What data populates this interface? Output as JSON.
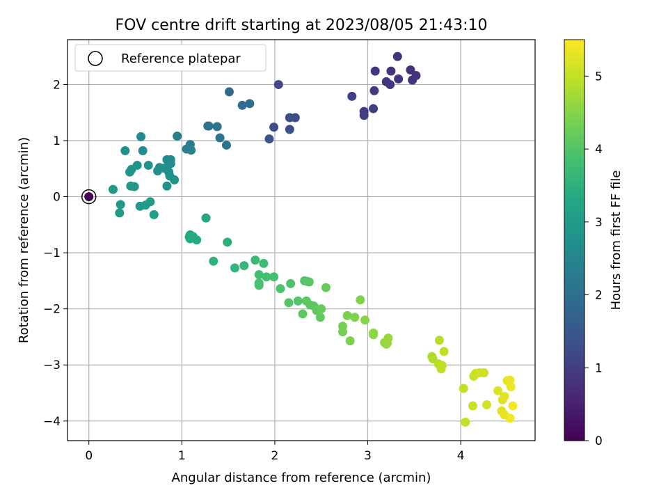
{
  "chart_data": {
    "type": "scatter",
    "title": "FOV centre drift starting at 2023/08/05 21:43:10",
    "xlabel": "Angular distance from reference (arcmin)",
    "ylabel": "Rotation from reference (arcmin)",
    "xlim": [
      -0.23,
      4.8
    ],
    "ylim": [
      -4.35,
      2.8
    ],
    "xticks": [
      "0",
      "1",
      "2",
      "3",
      "4"
    ],
    "yticks": [
      "−4",
      "−3",
      "−2",
      "−1",
      "0",
      "1",
      "2"
    ],
    "grid": true,
    "legend": {
      "label": "Reference platepar",
      "placement": "top-left"
    },
    "colorbar": {
      "label": "Hours from first FF file",
      "colormap": "viridis",
      "range": [
        0,
        5.5
      ],
      "ticks": [
        "0",
        "1",
        "2",
        "3",
        "4",
        "5"
      ]
    },
    "reference_point": {
      "x": 0,
      "y": 0
    },
    "points": [
      {
        "x": 0,
        "y": 0,
        "h": 0
      },
      {
        "x": 3.32,
        "y": 2.5,
        "h": 0.75
      },
      {
        "x": 3.46,
        "y": 2.26,
        "h": 0.75
      },
      {
        "x": 3.52,
        "y": 2.16,
        "h": 0.8
      },
      {
        "x": 3.48,
        "y": 2.08,
        "h": 0.8
      },
      {
        "x": 3.25,
        "y": 2.24,
        "h": 0.8
      },
      {
        "x": 3.33,
        "y": 2.1,
        "h": 0.8
      },
      {
        "x": 3.2,
        "y": 2.05,
        "h": 0.85
      },
      {
        "x": 3.24,
        "y": 2.0,
        "h": 0.85
      },
      {
        "x": 3.08,
        "y": 2.24,
        "h": 0.85
      },
      {
        "x": 3.07,
        "y": 1.89,
        "h": 0.9
      },
      {
        "x": 2.96,
        "y": 1.52,
        "h": 1.0
      },
      {
        "x": 2.96,
        "y": 1.45,
        "h": 1.0
      },
      {
        "x": 3.06,
        "y": 1.57,
        "h": 1.0
      },
      {
        "x": 2.83,
        "y": 1.79,
        "h": 1.05
      },
      {
        "x": 2.04,
        "y": 2.0,
        "h": 1.2
      },
      {
        "x": 2.22,
        "y": 1.41,
        "h": 1.25
      },
      {
        "x": 2.16,
        "y": 1.41,
        "h": 1.3
      },
      {
        "x": 2.16,
        "y": 1.2,
        "h": 1.3
      },
      {
        "x": 1.99,
        "y": 1.24,
        "h": 1.35
      },
      {
        "x": 1.94,
        "y": 1.03,
        "h": 1.4
      },
      {
        "x": 1.51,
        "y": 1.87,
        "h": 1.9
      },
      {
        "x": 1.65,
        "y": 1.63,
        "h": 1.95
      },
      {
        "x": 1.73,
        "y": 1.66,
        "h": 1.95
      },
      {
        "x": 1.48,
        "y": 0.92,
        "h": 2.1
      },
      {
        "x": 1.29,
        "y": 1.26,
        "h": 2.05
      },
      {
        "x": 1.28,
        "y": 1.26,
        "h": 2.05
      },
      {
        "x": 1.38,
        "y": 1.25,
        "h": 2.1
      },
      {
        "x": 1.41,
        "y": 1.05,
        "h": 2.15
      },
      {
        "x": 0.95,
        "y": 1.08,
        "h": 2.3
      },
      {
        "x": 1.09,
        "y": 0.93,
        "h": 2.3
      },
      {
        "x": 1.05,
        "y": 0.85,
        "h": 2.35
      },
      {
        "x": 1.1,
        "y": 0.83,
        "h": 2.35
      },
      {
        "x": 0.56,
        "y": 1.07,
        "h": 2.6
      },
      {
        "x": 0.39,
        "y": 0.82,
        "h": 2.7
      },
      {
        "x": 0.58,
        "y": 0.82,
        "h": 2.65
      },
      {
        "x": 0.88,
        "y": 0.66,
        "h": 2.6
      },
      {
        "x": 0.84,
        "y": 0.66,
        "h": 2.6
      },
      {
        "x": 0.88,
        "y": 0.59,
        "h": 2.65
      },
      {
        "x": 0.81,
        "y": 0.51,
        "h": 2.7
      },
      {
        "x": 0.86,
        "y": 0.44,
        "h": 2.7
      },
      {
        "x": 0.87,
        "y": 0.37,
        "h": 2.75
      },
      {
        "x": 0.92,
        "y": 0.3,
        "h": 2.75
      },
      {
        "x": 0.84,
        "y": 0.19,
        "h": 2.8
      },
      {
        "x": 0.74,
        "y": 0.46,
        "h": 2.75
      },
      {
        "x": 0.76,
        "y": 0.52,
        "h": 2.75
      },
      {
        "x": 0.64,
        "y": 0.56,
        "h": 2.8
      },
      {
        "x": 0.52,
        "y": 0.56,
        "h": 2.8
      },
      {
        "x": 0.46,
        "y": 0.49,
        "h": 2.85
      },
      {
        "x": 0.44,
        "y": 0.44,
        "h": 2.85
      },
      {
        "x": 0.45,
        "y": 0.19,
        "h": 2.9
      },
      {
        "x": 0.49,
        "y": 0.18,
        "h": 2.9
      },
      {
        "x": 0.26,
        "y": 0.13,
        "h": 2.95
      },
      {
        "x": 0.34,
        "y": -0.14,
        "h": 2.95
      },
      {
        "x": 0.33,
        "y": -0.29,
        "h": 3.0
      },
      {
        "x": 0.55,
        "y": -0.17,
        "h": 3.0
      },
      {
        "x": 0.61,
        "y": -0.15,
        "h": 3.0
      },
      {
        "x": 0.66,
        "y": -0.09,
        "h": 3.0
      },
      {
        "x": 0.7,
        "y": -0.32,
        "h": 3.05
      },
      {
        "x": 1.26,
        "y": -0.38,
        "h": 3.2
      },
      {
        "x": 1.09,
        "y": -0.68,
        "h": 3.3
      },
      {
        "x": 1.12,
        "y": -0.71,
        "h": 3.3
      },
      {
        "x": 1.08,
        "y": -0.72,
        "h": 3.3
      },
      {
        "x": 1.09,
        "y": -0.75,
        "h": 3.35
      },
      {
        "x": 1.16,
        "y": -0.77,
        "h": 3.35
      },
      {
        "x": 1.49,
        "y": -0.81,
        "h": 3.5
      },
      {
        "x": 1.34,
        "y": -1.15,
        "h": 3.55
      },
      {
        "x": 1.57,
        "y": -1.27,
        "h": 3.6
      },
      {
        "x": 1.67,
        "y": -1.23,
        "h": 3.65
      },
      {
        "x": 1.79,
        "y": -1.13,
        "h": 3.7
      },
      {
        "x": 1.88,
        "y": -1.19,
        "h": 3.75
      },
      {
        "x": 1.83,
        "y": -1.39,
        "h": 3.8
      },
      {
        "x": 1.91,
        "y": -1.43,
        "h": 3.85
      },
      {
        "x": 1.99,
        "y": -1.43,
        "h": 3.85
      },
      {
        "x": 1.83,
        "y": -1.54,
        "h": 3.9
      },
      {
        "x": 1.83,
        "y": -1.58,
        "h": 3.9
      },
      {
        "x": 2.06,
        "y": -1.64,
        "h": 3.95
      },
      {
        "x": 2.17,
        "y": -1.55,
        "h": 3.95
      },
      {
        "x": 2.15,
        "y": -1.89,
        "h": 4.0
      },
      {
        "x": 2.25,
        "y": -1.86,
        "h": 4.0
      },
      {
        "x": 2.32,
        "y": -1.5,
        "h": 4.0
      },
      {
        "x": 2.35,
        "y": -1.51,
        "h": 4.05
      },
      {
        "x": 2.37,
        "y": -1.52,
        "h": 4.05
      },
      {
        "x": 2.34,
        "y": -1.86,
        "h": 4.1
      },
      {
        "x": 2.38,
        "y": -1.93,
        "h": 4.1
      },
      {
        "x": 2.42,
        "y": -1.95,
        "h": 4.1
      },
      {
        "x": 2.45,
        "y": -2.03,
        "h": 4.15
      },
      {
        "x": 2.49,
        "y": -2.15,
        "h": 4.15
      },
      {
        "x": 2.5,
        "y": -2.0,
        "h": 4.2
      },
      {
        "x": 2.55,
        "y": -1.62,
        "h": 4.2
      },
      {
        "x": 2.3,
        "y": -2.09,
        "h": 4.1
      },
      {
        "x": 2.73,
        "y": -2.31,
        "h": 4.35
      },
      {
        "x": 2.73,
        "y": -2.41,
        "h": 4.35
      },
      {
        "x": 2.78,
        "y": -2.12,
        "h": 4.4
      },
      {
        "x": 2.81,
        "y": -2.57,
        "h": 4.4
      },
      {
        "x": 2.86,
        "y": -2.15,
        "h": 4.45
      },
      {
        "x": 2.92,
        "y": -1.84,
        "h": 4.45
      },
      {
        "x": 2.97,
        "y": -2.2,
        "h": 4.5
      },
      {
        "x": 3.06,
        "y": -2.43,
        "h": 4.55
      },
      {
        "x": 3.06,
        "y": -2.46,
        "h": 4.55
      },
      {
        "x": 3.18,
        "y": -2.6,
        "h": 4.6
      },
      {
        "x": 3.21,
        "y": -2.61,
        "h": 4.6
      },
      {
        "x": 3.22,
        "y": -2.52,
        "h": 4.65
      },
      {
        "x": 3.2,
        "y": -2.63,
        "h": 4.65
      },
      {
        "x": 3.69,
        "y": -2.85,
        "h": 4.85
      },
      {
        "x": 3.7,
        "y": -2.89,
        "h": 4.85
      },
      {
        "x": 3.77,
        "y": -2.56,
        "h": 4.9
      },
      {
        "x": 3.76,
        "y": -2.98,
        "h": 4.9
      },
      {
        "x": 3.8,
        "y": -3.01,
        "h": 4.95
      },
      {
        "x": 3.79,
        "y": -3.07,
        "h": 4.95
      },
      {
        "x": 3.82,
        "y": -2.76,
        "h": 4.95
      },
      {
        "x": 4.03,
        "y": -3.42,
        "h": 5.0
      },
      {
        "x": 4.05,
        "y": -4.02,
        "h": 5.0
      },
      {
        "x": 4.13,
        "y": -3.73,
        "h": 5.05
      },
      {
        "x": 4.14,
        "y": -3.2,
        "h": 5.05
      },
      {
        "x": 4.16,
        "y": -3.15,
        "h": 5.05
      },
      {
        "x": 4.2,
        "y": -3.14,
        "h": 5.1
      },
      {
        "x": 4.25,
        "y": -3.14,
        "h": 5.1
      },
      {
        "x": 4.28,
        "y": -3.71,
        "h": 5.15
      },
      {
        "x": 4.4,
        "y": -3.46,
        "h": 5.2
      },
      {
        "x": 4.45,
        "y": -3.62,
        "h": 5.2
      },
      {
        "x": 4.47,
        "y": -3.56,
        "h": 5.25
      },
      {
        "x": 4.44,
        "y": -3.82,
        "h": 5.25
      },
      {
        "x": 4.47,
        "y": -3.89,
        "h": 5.3
      },
      {
        "x": 4.5,
        "y": -3.28,
        "h": 5.3
      },
      {
        "x": 4.53,
        "y": -3.27,
        "h": 5.35
      },
      {
        "x": 4.54,
        "y": -3.39,
        "h": 5.35
      },
      {
        "x": 4.53,
        "y": -3.95,
        "h": 5.4
      },
      {
        "x": 4.56,
        "y": -3.73,
        "h": 5.45
      }
    ]
  }
}
